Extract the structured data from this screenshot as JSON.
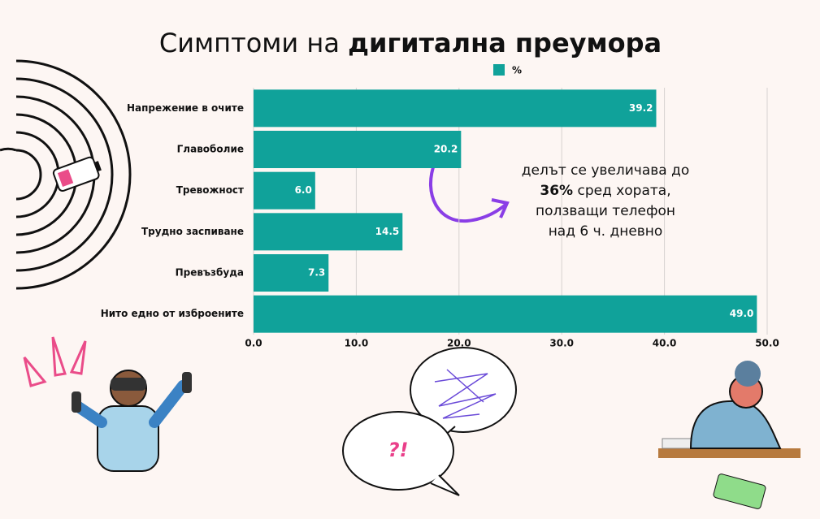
{
  "chart_data": {
    "type": "hbar",
    "title": "Симптоми на",
    "title_emphasis": "дигитална преумора",
    "categories": [
      "Напрежение в очите",
      "Главоболие",
      "Тревожност",
      "Трудно заспиване",
      "Превъзбуда",
      "Нито едно от изброените"
    ],
    "series": [
      {
        "name": "%",
        "color": "#10a29a",
        "values": [
          39.2,
          20.2,
          6,
          14.5,
          7.3,
          49
        ],
        "value_labels": [
          "39.2",
          "20.2",
          "6.0",
          "14.5",
          "7.3",
          "49.0"
        ]
      }
    ],
    "xlim": [
      0,
      50
    ],
    "xticks": [
      {
        "value": 0,
        "label": "0.0"
      },
      {
        "value": 10,
        "label": "10.0"
      },
      {
        "value": 20,
        "label": "20.0"
      },
      {
        "value": 30,
        "label": "30.0"
      },
      {
        "value": 40,
        "label": "40.0"
      },
      {
        "value": 50,
        "label": "50.0"
      }
    ],
    "grid": true,
    "legend": "top",
    "annotation": {
      "line1": "делът се увеличава до",
      "emphasis": "36%",
      "line2_rest": "сред хората,",
      "line3": "ползващи телефон",
      "line4": "над 6 ч. дневно"
    },
    "bubble_text": "?!"
  }
}
